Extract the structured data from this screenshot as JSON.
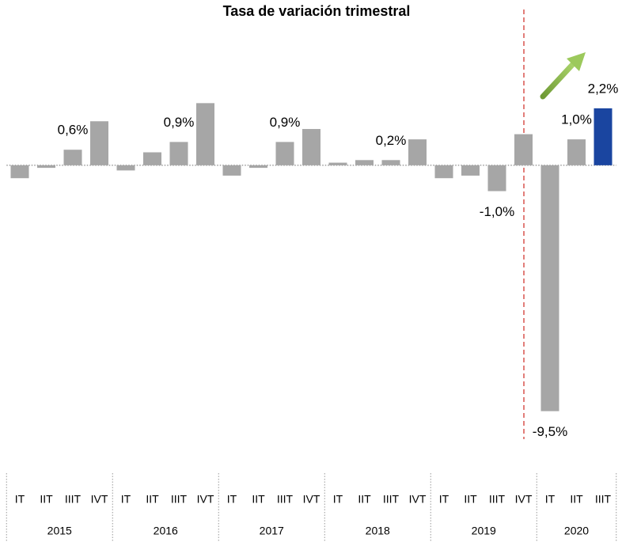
{
  "chart_data": {
    "type": "bar",
    "title": "Tasa de variación trimestral",
    "groups": [
      {
        "name": "2015",
        "quarters": [
          "IT",
          "IIT",
          "IIIT",
          "IVT"
        ]
      },
      {
        "name": "2016",
        "quarters": [
          "IT",
          "IIT",
          "IIIT",
          "IVT"
        ]
      },
      {
        "name": "2017",
        "quarters": [
          "IT",
          "IIT",
          "IIIT",
          "IVT"
        ]
      },
      {
        "name": "2018",
        "quarters": [
          "IT",
          "IIT",
          "IIIT",
          "IVT"
        ]
      },
      {
        "name": "2019",
        "quarters": [
          "IT",
          "IIT",
          "IIIT",
          "IVT"
        ]
      },
      {
        "name": "2020",
        "quarters": [
          "IT",
          "IIT",
          "IIIT"
        ]
      }
    ],
    "values": [
      -0.5,
      -0.1,
      0.6,
      1.7,
      -0.2,
      0.5,
      0.9,
      2.4,
      -0.4,
      -0.1,
      0.9,
      1.4,
      0.1,
      0.2,
      0.2,
      1.0,
      -0.5,
      -0.4,
      -1.0,
      1.2,
      -9.5,
      1.0,
      2.2
    ],
    "value_labels": [
      null,
      null,
      "0,6%",
      null,
      null,
      null,
      "0,9%",
      null,
      null,
      null,
      "0,9%",
      null,
      null,
      null,
      "0,2%",
      null,
      null,
      null,
      "-1,0%",
      null,
      "-9,5%",
      "1,0%",
      "2,2%"
    ],
    "colors": [
      "#a6a6a6",
      "#a6a6a6",
      "#a6a6a6",
      "#a6a6a6",
      "#a6a6a6",
      "#a6a6a6",
      "#a6a6a6",
      "#a6a6a6",
      "#a6a6a6",
      "#a6a6a6",
      "#a6a6a6",
      "#a6a6a6",
      "#a6a6a6",
      "#a6a6a6",
      "#a6a6a6",
      "#a6a6a6",
      "#a6a6a6",
      "#a6a6a6",
      "#a6a6a6",
      "#a6a6a6",
      "#a6a6a6",
      "#a6a6a6",
      "#1a45a0"
    ],
    "ylim": [
      -10,
      4
    ]
  }
}
